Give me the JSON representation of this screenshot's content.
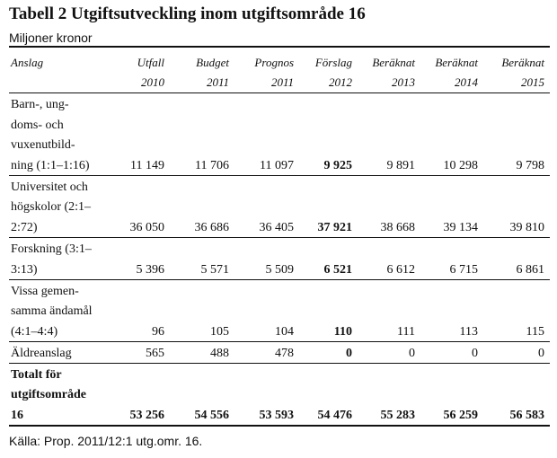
{
  "title": "Tabell 2 Utgiftsutveckling inom utgiftsområde 16",
  "subtitle": "Miljoner kronor",
  "table": {
    "header": [
      [
        "Anslag"
      ],
      [
        "Utfall",
        "2010"
      ],
      [
        "Budget",
        "2011"
      ],
      [
        "Prognos",
        "2011"
      ],
      [
        "Förslag",
        "2012"
      ],
      [
        "Beräknat",
        "2013"
      ],
      [
        "Beräknat",
        "2014"
      ],
      [
        "Beräknat",
        "2015"
      ]
    ],
    "highlight_column": 3,
    "rows": [
      {
        "label": [
          "Barn-, ung-",
          "doms- och",
          "vuxenutbild-",
          "ning (1:1–1:16)"
        ],
        "values": [
          "11 149",
          "11 706",
          "11 097",
          "9 925",
          "9 891",
          "10 298",
          "9 798"
        ]
      },
      {
        "label": [
          "Universitet och",
          "högskolor (2:1–",
          "2:72)"
        ],
        "values": [
          "36 050",
          "36 686",
          "36 405",
          "37 921",
          "38 668",
          "39 134",
          "39 810"
        ]
      },
      {
        "label": [
          "Forskning (3:1–",
          "3:13)"
        ],
        "values": [
          "5 396",
          "5 571",
          "5 509",
          "6 521",
          "6 612",
          "6 715",
          "6 861"
        ]
      },
      {
        "label": [
          "Vissa gemen-",
          "samma ändamål",
          "(4:1–4:4)"
        ],
        "values": [
          "96",
          "105",
          "104",
          "110",
          "111",
          "113",
          "115"
        ]
      },
      {
        "label": [
          "Äldreanslag"
        ],
        "values": [
          "565",
          "488",
          "478",
          "0",
          "0",
          "0",
          "0"
        ]
      },
      {
        "label": [
          "Totalt för",
          "utgiftsområde",
          "16"
        ],
        "values": [
          "53 256",
          "54 556",
          "53 593",
          "54 476",
          "55 283",
          "56 259",
          "56 583"
        ],
        "total": true
      }
    ]
  },
  "source": "Källa: Prop. 2011/12:1 utg.omr. 16."
}
